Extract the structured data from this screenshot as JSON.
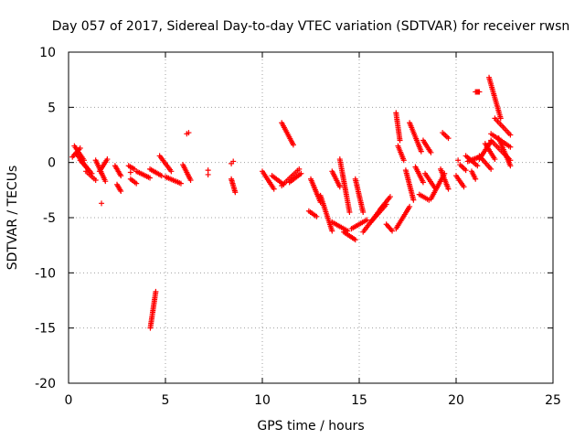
{
  "chart_data": {
    "type": "scatter",
    "title": "Day 057 of 2017, Sidereal Day-to-day VTEC variation (SDTVAR) for receiver rwsn",
    "xlabel": "GPS time / hours",
    "ylabel": "SDTVAR / TECUs",
    "xlim": [
      0,
      25
    ],
    "ylim": [
      -20,
      10
    ],
    "xticks": [
      0,
      5,
      10,
      15,
      20,
      25
    ],
    "yticks": [
      -20,
      -15,
      -10,
      -5,
      0,
      5,
      10
    ],
    "grid": true,
    "marker": "+",
    "color": "#ff0000",
    "segments": [
      {
        "x": [
          0.2,
          0.6
        ],
        "y": [
          0.5,
          1.3
        ]
      },
      {
        "x": [
          0.3,
          0.8
        ],
        "y": [
          1.5,
          0.2
        ]
      },
      {
        "x": [
          0.4,
          1.0
        ],
        "y": [
          0.8,
          -0.6
        ]
      },
      {
        "x": [
          0.6,
          1.2
        ],
        "y": [
          0.2,
          -1.0
        ]
      },
      {
        "x": [
          0.9,
          1.4
        ],
        "y": [
          -0.8,
          -1.6
        ]
      },
      {
        "x": [
          1.4,
          1.9
        ],
        "y": [
          0.2,
          -1.7
        ]
      },
      {
        "x": [
          1.6,
          2.0
        ],
        "y": [
          -0.8,
          0.3
        ]
      },
      {
        "x": [
          2.4,
          2.7
        ],
        "y": [
          -0.3,
          -1.2
        ]
      },
      {
        "x": [
          2.5,
          2.7
        ],
        "y": [
          -2.0,
          -2.6
        ]
      },
      {
        "x": [
          3.1,
          3.4
        ],
        "y": [
          -0.3,
          -0.6
        ]
      },
      {
        "x": [
          3.2,
          3.5
        ],
        "y": [
          -1.5,
          -1.9
        ]
      },
      {
        "x": [
          3.5,
          4.2
        ],
        "y": [
          -0.8,
          -1.4
        ]
      },
      {
        "x": [
          4.2,
          4.8
        ],
        "y": [
          -0.6,
          -1.2
        ]
      },
      {
        "x": [
          4.7,
          5.3
        ],
        "y": [
          0.6,
          -0.8
        ]
      },
      {
        "x": [
          5.0,
          5.8
        ],
        "y": [
          -1.3,
          -1.9
        ]
      },
      {
        "x": [
          5.9,
          6.3
        ],
        "y": [
          -0.2,
          -1.6
        ]
      },
      {
        "x": [
          4.22,
          4.5
        ],
        "y": [
          -15.0,
          -11.7
        ]
      },
      {
        "x": [
          8.4,
          8.6
        ],
        "y": [
          -1.5,
          -2.7
        ]
      },
      {
        "x": [
          10.0,
          10.6
        ],
        "y": [
          -0.8,
          -2.4
        ]
      },
      {
        "x": [
          10.5,
          11.1
        ],
        "y": [
          -1.2,
          -2.0
        ]
      },
      {
        "x": [
          11.0,
          11.6
        ],
        "y": [
          3.6,
          1.6
        ]
      },
      {
        "x": [
          11.0,
          11.9
        ],
        "y": [
          -2.1,
          -0.6
        ]
      },
      {
        "x": [
          11.4,
          12.0
        ],
        "y": [
          -1.8,
          -1.0
        ]
      },
      {
        "x": [
          12.5,
          13.0
        ],
        "y": [
          -1.5,
          -3.6
        ]
      },
      {
        "x": [
          12.4,
          12.8
        ],
        "y": [
          -4.4,
          -4.9
        ]
      },
      {
        "x": [
          13.0,
          13.6
        ],
        "y": [
          -3.0,
          -6.2
        ]
      },
      {
        "x": [
          13.6,
          14.0
        ],
        "y": [
          -0.8,
          -2.2
        ]
      },
      {
        "x": [
          13.6,
          14.4
        ],
        "y": [
          -5.4,
          -6.2
        ]
      },
      {
        "x": [
          14.0,
          14.5
        ],
        "y": [
          0.3,
          -4.5
        ]
      },
      {
        "x": [
          14.2,
          14.8
        ],
        "y": [
          -6.3,
          -7.0
        ]
      },
      {
        "x": [
          14.8,
          15.2
        ],
        "y": [
          -1.5,
          -4.5
        ]
      },
      {
        "x": [
          14.6,
          15.4
        ],
        "y": [
          -6.0,
          -5.2
        ]
      },
      {
        "x": [
          15.2,
          16.2
        ],
        "y": [
          -6.3,
          -4.0
        ]
      },
      {
        "x": [
          15.6,
          16.4
        ],
        "y": [
          -5.4,
          -3.8
        ]
      },
      {
        "x": [
          16.1,
          16.6
        ],
        "y": [
          -4.2,
          -3.1
        ]
      },
      {
        "x": [
          16.4,
          16.7
        ],
        "y": [
          -5.6,
          -6.2
        ]
      },
      {
        "x": [
          16.9,
          17.1
        ],
        "y": [
          4.5,
          2.0
        ]
      },
      {
        "x": [
          17.0,
          17.3
        ],
        "y": [
          1.5,
          0.2
        ]
      },
      {
        "x": [
          16.9,
          17.6
        ],
        "y": [
          -6.0,
          -4.0
        ]
      },
      {
        "x": [
          17.4,
          17.8
        ],
        "y": [
          -0.7,
          -3.4
        ]
      },
      {
        "x": [
          17.6,
          18.2
        ],
        "y": [
          3.6,
          1.0
        ]
      },
      {
        "x": [
          17.9,
          18.3
        ],
        "y": [
          -0.4,
          -1.8
        ]
      },
      {
        "x": [
          18.1,
          18.6
        ],
        "y": [
          -2.9,
          -3.4
        ]
      },
      {
        "x": [
          18.3,
          18.7
        ],
        "y": [
          2.0,
          0.9
        ]
      },
      {
        "x": [
          18.4,
          18.9
        ],
        "y": [
          -1.0,
          -2.3
        ]
      },
      {
        "x": [
          18.7,
          19.4
        ],
        "y": [
          -3.3,
          -1.0
        ]
      },
      {
        "x": [
          19.3,
          19.6
        ],
        "y": [
          2.7,
          2.2
        ]
      },
      {
        "x": [
          19.2,
          19.6
        ],
        "y": [
          -0.6,
          -2.4
        ]
      },
      {
        "x": [
          20.0,
          20.4
        ],
        "y": [
          -1.2,
          -2.2
        ]
      },
      {
        "x": [
          20.2,
          20.5
        ],
        "y": [
          -0.2,
          -0.7
        ]
      },
      {
        "x": [
          20.5,
          21.1
        ],
        "y": [
          0.6,
          -0.3
        ]
      },
      {
        "x": [
          20.8,
          21.0
        ],
        "y": [
          -0.8,
          -1.5
        ]
      },
      {
        "x": [
          20.6,
          21.2
        ],
        "y": [
          0.1,
          0.5
        ]
      },
      {
        "x": [
          21.0,
          21.2
        ],
        "y": [
          6.4,
          6.4
        ]
      },
      {
        "x": [
          21.2,
          21.8
        ],
        "y": [
          0.3,
          1.9
        ]
      },
      {
        "x": [
          21.5,
          22.0
        ],
        "y": [
          1.7,
          0.3
        ]
      },
      {
        "x": [
          21.7,
          22.3
        ],
        "y": [
          7.7,
          4.0
        ]
      },
      {
        "x": [
          22.0,
          22.8
        ],
        "y": [
          4.0,
          2.5
        ]
      },
      {
        "x": [
          21.8,
          22.8
        ],
        "y": [
          2.0,
          0.2
        ]
      },
      {
        "x": [
          22.2,
          22.8
        ],
        "y": [
          2.2,
          -0.3
        ]
      },
      {
        "x": [
          21.8,
          22.8
        ],
        "y": [
          2.6,
          1.4
        ]
      },
      {
        "x": [
          21.2,
          21.8
        ],
        "y": [
          0.6,
          -0.6
        ]
      }
    ],
    "points": [
      {
        "x": 1.7,
        "y": -3.7
      },
      {
        "x": 6.2,
        "y": 2.7
      },
      {
        "x": 6.1,
        "y": 2.6
      },
      {
        "x": 7.2,
        "y": -0.7
      },
      {
        "x": 7.2,
        "y": -1.1
      },
      {
        "x": 8.5,
        "y": 0.1
      },
      {
        "x": 8.4,
        "y": -0.1
      },
      {
        "x": 3.2,
        "y": -0.9
      },
      {
        "x": 20.1,
        "y": 0.2
      }
    ]
  }
}
